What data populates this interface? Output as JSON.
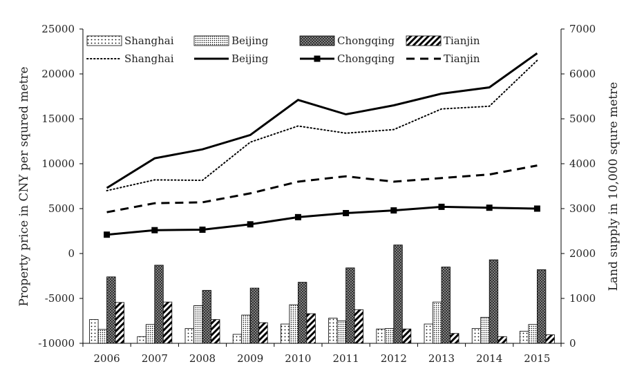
{
  "chart_data": {
    "type": "bar",
    "categories": [
      "2006",
      "2007",
      "2008",
      "2009",
      "2010",
      "2011",
      "2012",
      "2013",
      "2014",
      "2015"
    ],
    "ylabel_left": "Property price in CNY per squred metre",
    "ylabel_right": "Land supply in 10,000 squre metre",
    "ylim_left": [
      -10000,
      25000
    ],
    "ylim_right": [
      0,
      7000
    ],
    "yticks_left": [
      "25000",
      "20000",
      "15000",
      "10000",
      "5000",
      "0",
      "-5000",
      "-10000"
    ],
    "yticks_right": [
      "7000",
      "6000",
      "5000",
      "4000",
      "3000",
      "2000",
      "1000",
      "0"
    ],
    "legend_placement": "top-left",
    "bar_series": [
      {
        "name": "Shanghai",
        "axis": "right",
        "pattern": "dots",
        "values": [
          530,
          150,
          330,
          200,
          430,
          560,
          320,
          430,
          330,
          270
        ]
      },
      {
        "name": "Beijing",
        "axis": "right",
        "pattern": "fine-dots",
        "values": [
          310,
          420,
          840,
          630,
          860,
          500,
          330,
          920,
          580,
          420
        ]
      },
      {
        "name": "Chongqing",
        "axis": "right",
        "pattern": "crosshatch",
        "values": [
          1480,
          1740,
          1180,
          1230,
          1360,
          1680,
          2190,
          1700,
          1860,
          1640
        ]
      },
      {
        "name": "Tianjin",
        "axis": "right",
        "pattern": "diagonal",
        "values": [
          910,
          920,
          530,
          460,
          660,
          750,
          320,
          220,
          150,
          190
        ]
      }
    ],
    "line_series": [
      {
        "name": "Shanghai",
        "axis": "left",
        "style": "dotted",
        "values": [
          7000,
          8200,
          8150,
          12400,
          14200,
          13400,
          13800,
          16100,
          16400,
          21500
        ]
      },
      {
        "name": "Beijing",
        "axis": "left",
        "style": "solid",
        "values": [
          7300,
          10600,
          11600,
          13200,
          17100,
          15500,
          16500,
          17800,
          18500,
          22300
        ]
      },
      {
        "name": "Chongqing",
        "axis": "left",
        "style": "solid-square-markers",
        "values": [
          2100,
          2600,
          2650,
          3250,
          4050,
          4500,
          4800,
          5200,
          5100,
          5000
        ]
      },
      {
        "name": "Tianjin",
        "axis": "left",
        "style": "dashed",
        "values": [
          4600,
          5600,
          5700,
          6700,
          8000,
          8600,
          8000,
          8400,
          8800,
          9800
        ]
      }
    ],
    "grid": false
  }
}
